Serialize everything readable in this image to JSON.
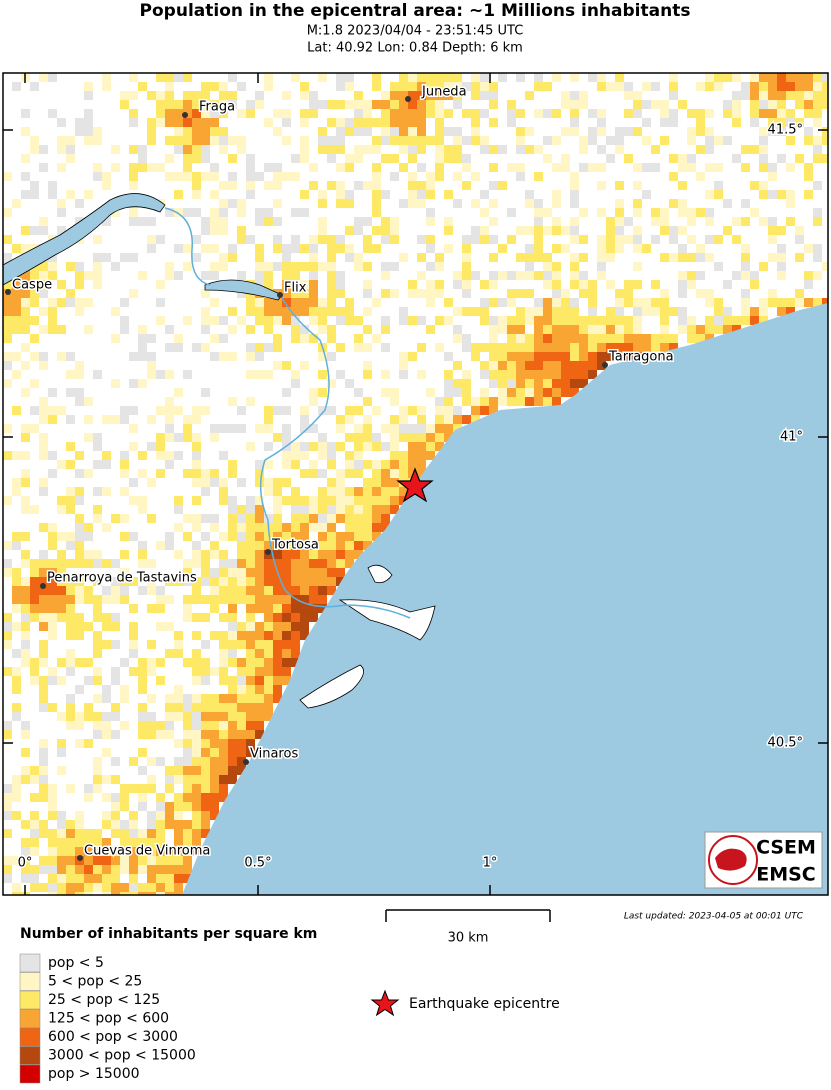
{
  "header": {
    "title": "Population in the epicentral area: ~1 Millions inhabitants",
    "subtitle": "M:1.8 2023/04/04 - 23:51:45 UTC",
    "location": "Lat: 40.92 Lon: 0.84 Depth: 6 km"
  },
  "map": {
    "places": [
      "Fraga",
      "Juneda",
      "Caspe",
      "Flix",
      "Tarragona",
      "Tortosa",
      "Penarroya de Tastavins",
      "Vinaros",
      "Cuevas de Vinroma"
    ],
    "lat_labels": [
      "41.5°",
      "41°",
      "40.5°"
    ],
    "lon_labels": [
      "0°",
      "0.5°",
      "1°"
    ],
    "scale": "30 km",
    "last_updated": "Last updated: 2023-04-05 at 00:01 UTC",
    "logo": [
      "CSEM",
      "EMSC"
    ]
  },
  "legend": {
    "title": "Number of inhabitants per square km",
    "classes": [
      {
        "label": "pop < 5",
        "color": "#e4e4e4"
      },
      {
        "label": "5 < pop < 25",
        "color": "#fff6c4"
      },
      {
        "label": "25 < pop < 125",
        "color": "#fde966"
      },
      {
        "label": "125 < pop < 600",
        "color": "#f9a533"
      },
      {
        "label": "600 < pop < 3000",
        "color": "#ef6514"
      },
      {
        "label": "3000 < pop < 15000",
        "color": "#b5480f"
      },
      {
        "label": "pop > 15000",
        "color": "#d40000"
      }
    ],
    "epicentre": "Earthquake epicentre"
  }
}
